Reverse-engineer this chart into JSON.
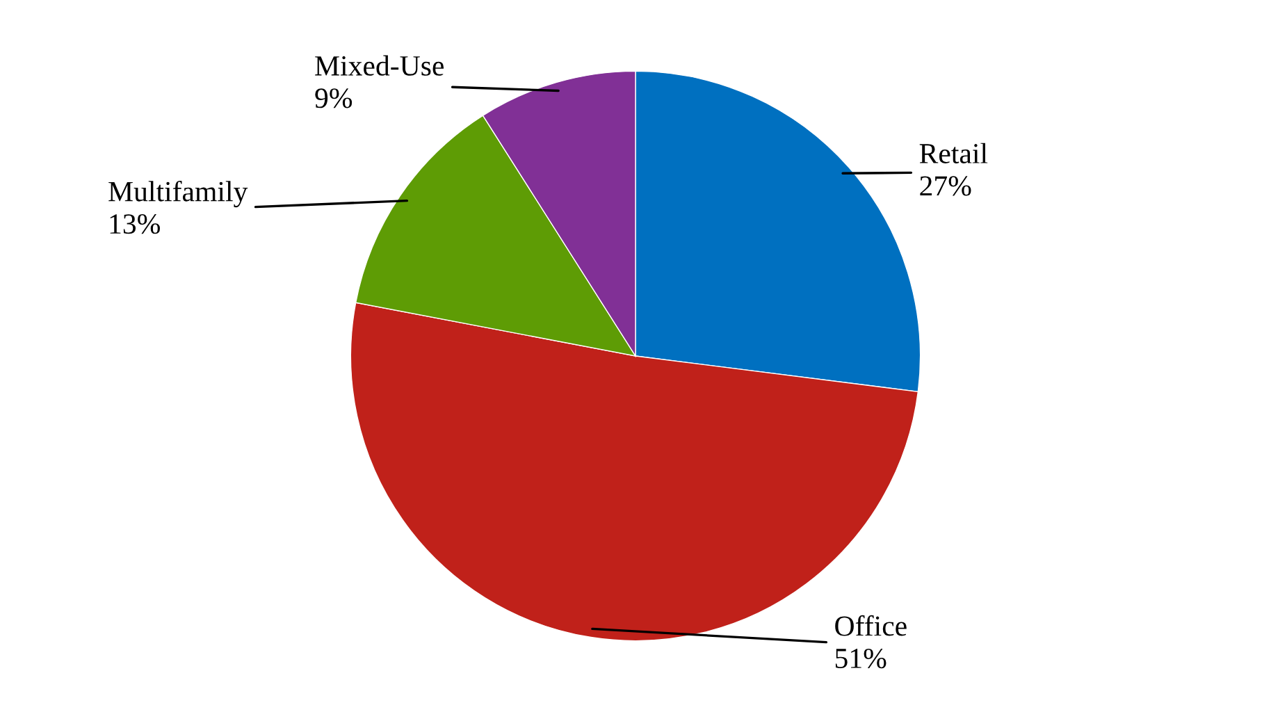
{
  "chart_data": {
    "type": "pie",
    "categories": [
      "Retail",
      "Office",
      "Multifamily",
      "Mixed-Use"
    ],
    "values": [
      27,
      51,
      13,
      9
    ],
    "value_labels": [
      "27%",
      "51%",
      "13%",
      "9%"
    ],
    "colors": [
      "#0070c0",
      "#c0211a",
      "#5e9c05",
      "#813096"
    ]
  }
}
